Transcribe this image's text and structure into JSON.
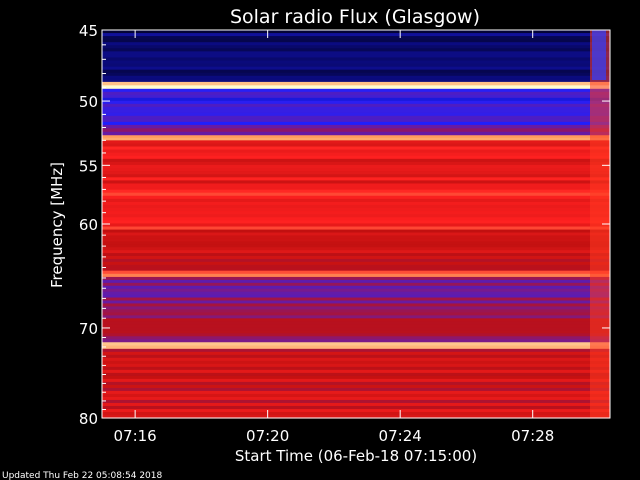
{
  "chart_data": {
    "type": "heatmap",
    "title": "Solar radio Flux (Glasgow)",
    "xlabel": "Start Time (06-Feb-18 07:15:00)",
    "ylabel": "Frequency [MHz]",
    "y_scale": "log",
    "ylim": [
      45,
      80
    ],
    "y_ticks": [
      45,
      50,
      55,
      60,
      70,
      80
    ],
    "xlim": [
      "07:15:00",
      "07:30:20"
    ],
    "x_ticks": [
      "07:16",
      "07:20",
      "07:24",
      "07:28"
    ],
    "colormap": [
      "#000014",
      "#0a0a78",
      "#2020ff",
      "#7a1a8a",
      "#c01010",
      "#ff2020",
      "#ffa060",
      "#ffffd0"
    ],
    "bands": [
      {
        "from": 45,
        "to": 48.6,
        "level": 0.12
      },
      {
        "from": 48.6,
        "to": 49.1,
        "level": 0.97
      },
      {
        "from": 49.1,
        "to": 51.8,
        "level": 0.3
      },
      {
        "from": 51.8,
        "to": 52.6,
        "level": 0.42
      },
      {
        "from": 52.6,
        "to": 53.0,
        "level": 0.9
      },
      {
        "from": 53.0,
        "to": 56.5,
        "level": 0.66
      },
      {
        "from": 56.5,
        "to": 60.5,
        "level": 0.7
      },
      {
        "from": 60.5,
        "to": 64.3,
        "level": 0.58
      },
      {
        "from": 64.3,
        "to": 64.9,
        "level": 0.78
      },
      {
        "from": 64.9,
        "to": 67.5,
        "level": 0.44
      },
      {
        "from": 67.5,
        "to": 71.5,
        "level": 0.5
      },
      {
        "from": 71.5,
        "to": 72.2,
        "level": 0.95
      },
      {
        "from": 72.2,
        "to": 80,
        "level": 0.6
      }
    ]
  },
  "footer": {
    "updated": "Updated Thu Feb 22 05:08:54 2018"
  }
}
